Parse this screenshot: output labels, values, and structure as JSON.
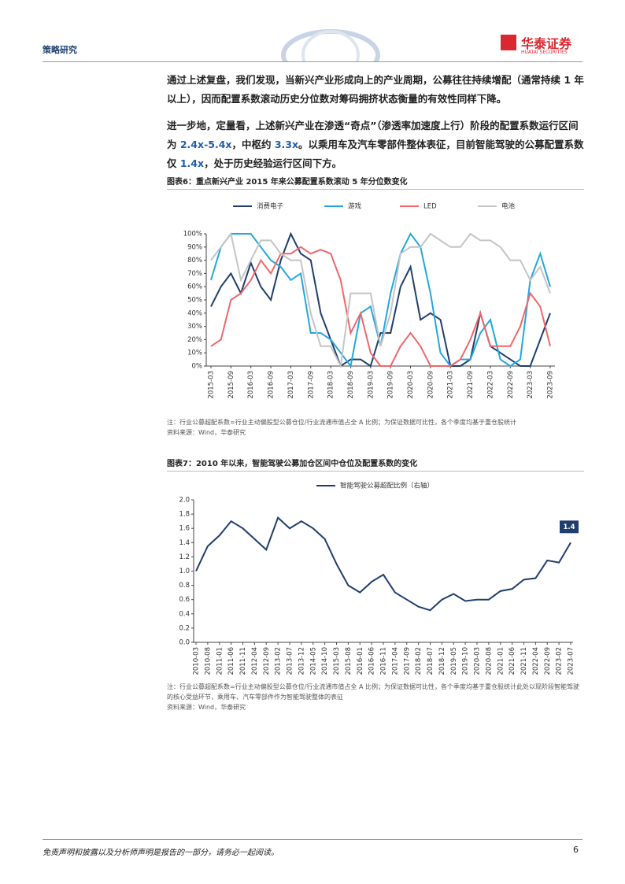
{
  "header": {
    "section": "策略研究",
    "brand": "华泰证券",
    "brand_en": "HUATAI SECURITIES"
  },
  "paragraphs": [
    [
      "通过上述复盘，我们发现，当新兴产业形成向上的产业周期，公募往往持续增配（通常持续 1 年以上），因而配置系数滚动历史分位数对筹码拥挤状态衡量的有效性同样下降。"
    ],
    [
      "进一步地，定量看，上述新兴产业在渗透“奇点”（渗透率加速度上行）阶段的配置系数运行区间为 ",
      "2.4x-5.4x",
      "，中枢约 ",
      "3.3x",
      "。以乘用车及汽车零部件整体表征，目前智能驾驶的公募配置系数仅 ",
      "1.4x",
      "，处于历史经验运行区间下方。"
    ]
  ],
  "chart_data": [
    {
      "type": "line",
      "title": "图表6：重点新兴产业 2015 年来公募配置系数滚动 5 年分位数变化",
      "categories": [
        "2015-03",
        null,
        "2015-09",
        null,
        "2016-03",
        null,
        "2016-09",
        null,
        "2017-03",
        null,
        "2017-09",
        null,
        "2018-03",
        null,
        "2018-09",
        null,
        "2019-03",
        null,
        "2019-09",
        null,
        "2020-03",
        null,
        "2020-09",
        null,
        "2021-03",
        null,
        "2021-09",
        null,
        "2022-03",
        null,
        "2022-09",
        null,
        "2023-03",
        null,
        "2023-09"
      ],
      "series": [
        {
          "name": "消费电子",
          "color": "#1f3e6e",
          "values": [
            45,
            60,
            70,
            55,
            78,
            60,
            50,
            80,
            100,
            85,
            80,
            40,
            20,
            0,
            5,
            5,
            0,
            25,
            25,
            60,
            75,
            35,
            40,
            35,
            0,
            0,
            5,
            40,
            15,
            10,
            5,
            0,
            0,
            20,
            40
          ]
        },
        {
          "name": "游戏",
          "color": "#22a7e0",
          "values": [
            65,
            90,
            100,
            100,
            100,
            90,
            80,
            75,
            65,
            70,
            25,
            25,
            20,
            10,
            0,
            40,
            45,
            15,
            55,
            85,
            100,
            90,
            55,
            10,
            0,
            5,
            5,
            25,
            35,
            5,
            0,
            5,
            65,
            85,
            60
          ]
        },
        {
          "name": "LED",
          "color": "#f0666b",
          "values": [
            15,
            20,
            50,
            55,
            65,
            80,
            70,
            85,
            85,
            90,
            85,
            88,
            85,
            65,
            25,
            40,
            10,
            0,
            0,
            15,
            25,
            15,
            0,
            0,
            0,
            5,
            20,
            40,
            15,
            15,
            15,
            30,
            55,
            45,
            15
          ]
        },
        {
          "name": "电池",
          "color": "#c4c4c4",
          "values": [
            80,
            90,
            100,
            65,
            80,
            95,
            95,
            85,
            80,
            80,
            40,
            15,
            15,
            0,
            55,
            55,
            55,
            15,
            40,
            85,
            90,
            90,
            100,
            95,
            90,
            90,
            100,
            95,
            95,
            90,
            80,
            80,
            65,
            75,
            55
          ]
        }
      ],
      "ylim": [
        0,
        100
      ],
      "yticks": [
        {
          "value": 0,
          "label": "0%"
        },
        {
          "value": 10,
          "label": "10%"
        },
        {
          "value": 20,
          "label": "20%"
        },
        {
          "value": 30,
          "label": "30%"
        },
        {
          "value": 40,
          "label": "40%"
        },
        {
          "value": 50,
          "label": "50%"
        },
        {
          "value": 60,
          "label": "60%"
        },
        {
          "value": 70,
          "label": "70%"
        },
        {
          "value": 80,
          "label": "80%"
        },
        {
          "value": 90,
          "label": "90%"
        },
        {
          "value": 100,
          "label": "100%"
        }
      ],
      "grid": false,
      "note": "注：行业公募超配系数=行业主动偏股型公募仓位/行业流通市值占全 A 比例；为保证数据可比性，各个季度均基于重仓股统计",
      "source": "资料来源：Wind，华泰研究"
    },
    {
      "type": "line",
      "title": "图表7：2010 年以来，智能驾驶公募加仓区间中仓位及配置系数的变化",
      "categories": [
        "2010-03",
        "2010-08",
        "2011-01",
        "2011-06",
        "2011-11",
        "2012-04",
        "2012-09",
        "2013-02",
        "2013-07",
        "2013-12",
        "2014-05",
        "2014-10",
        "2015-03",
        "2015-08",
        "2016-01",
        "2016-06",
        "2016-11",
        "2017-04",
        "2017-09",
        "2018-02",
        "2018-07",
        "2018-12",
        "2019-05",
        "2019-10",
        "2020-03",
        "2020-08",
        "2021-01",
        "2021-06",
        "2021-11",
        "2022-04",
        "2022-09",
        "2023-02",
        "2023-07"
      ],
      "series": [
        {
          "name": "智能驾驶公募超配比例（右轴）",
          "color": "#1f3e6e",
          "values": [
            1.0,
            1.35,
            1.5,
            1.7,
            1.6,
            1.45,
            1.3,
            1.75,
            1.6,
            1.7,
            1.6,
            1.45,
            1.1,
            0.8,
            0.7,
            0.85,
            0.95,
            0.7,
            0.6,
            0.5,
            0.45,
            0.6,
            0.68,
            0.58,
            0.6,
            0.6,
            0.72,
            0.75,
            0.88,
            0.9,
            1.15,
            1.12,
            1.4
          ],
          "value_labels": [
            null,
            null,
            null,
            null,
            null,
            null,
            null,
            null,
            null,
            null,
            null,
            null,
            null,
            null,
            null,
            null,
            null,
            null,
            null,
            null,
            null,
            null,
            null,
            null,
            null,
            null,
            null,
            null,
            null,
            null,
            null,
            null,
            "1.4"
          ]
        }
      ],
      "ylim": [
        0,
        2
      ],
      "yticks": [
        {
          "value": 0,
          "label": "0.0"
        },
        {
          "value": 0.2,
          "label": "0.2"
        },
        {
          "value": 0.4,
          "label": "0.4"
        },
        {
          "value": 0.6,
          "label": "0.6"
        },
        {
          "value": 0.8,
          "label": "0.8"
        },
        {
          "value": 1,
          "label": "1.0"
        },
        {
          "value": 1.2,
          "label": "1.2"
        },
        {
          "value": 1.4,
          "label": "1.4"
        },
        {
          "value": 1.6,
          "label": "1.6"
        },
        {
          "value": 1.8,
          "label": "1.8"
        },
        {
          "value": 2,
          "label": "2.0"
        }
      ],
      "grid": false,
      "note": "注：行业公募超配系数=行业主动偏股型公募仓位/行业流通市值占全 A 比例；为保证数据可比性，各个季度均基于重仓股统计此处以现阶段智能驾驶的核心受益环节，乘用车、汽车零部件作为智能驾驶整体的表征",
      "source": "资料来源：Wind，华泰研究"
    }
  ],
  "footer": {
    "disclaimer": "免责声明和披露以及分析师声明是报告的一部分，请务必一起阅读。",
    "page": "6"
  }
}
